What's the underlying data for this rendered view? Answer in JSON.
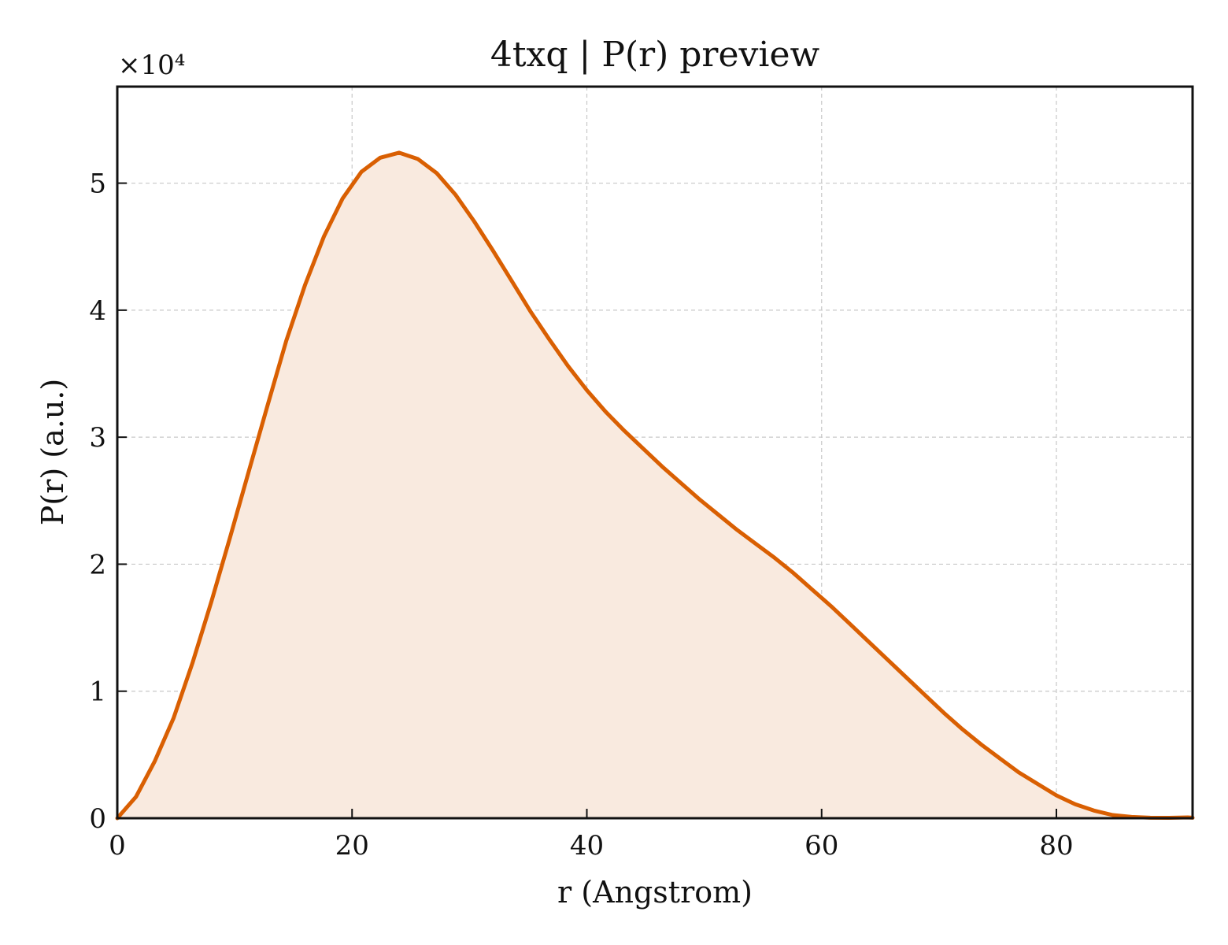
{
  "chart_data": {
    "type": "area",
    "title": "4txq | P(r) preview",
    "xlabel": "r (Angstrom)",
    "ylabel": "P(r) (a.u.)",
    "y_multiplier_label": "×10⁴",
    "xlim": [
      0,
      91.6
    ],
    "ylim": [
      0,
      57600
    ],
    "xticks": [
      0,
      20,
      40,
      60,
      80
    ],
    "xtick_labels": [
      "0",
      "20",
      "40",
      "60",
      "80"
    ],
    "yticks": [
      0,
      10000,
      20000,
      30000,
      40000,
      50000
    ],
    "ytick_labels": [
      "0",
      "1",
      "2",
      "3",
      "4",
      "5"
    ],
    "grid": true,
    "line_color": "#d95f02",
    "fill_color": "#f9eadf",
    "series": [
      {
        "x": [
          0,
          1.6,
          3.2,
          4.8,
          6.4,
          8.0,
          9.6,
          11.2,
          12.8,
          14.4,
          16.0,
          17.6,
          19.2,
          20.8,
          22.4,
          24.0,
          25.6,
          27.2,
          28.8,
          30.4,
          32.0,
          33.6,
          35.2,
          36.8,
          38.4,
          40.0,
          41.6,
          43.2,
          44.8,
          46.4,
          48.0,
          49.6,
          51.2,
          52.8,
          54.4,
          56.0,
          57.6,
          59.2,
          60.8,
          62.4,
          64.0,
          65.6,
          67.2,
          68.8,
          70.4,
          72.0,
          73.6,
          75.2,
          76.8,
          78.4,
          80.0,
          81.6,
          83.2,
          84.8,
          86.4,
          88.0,
          89.6,
          91.2,
          91.6
        ],
        "values": [
          0,
          1700,
          4500,
          7900,
          12200,
          17000,
          22100,
          27300,
          32500,
          37600,
          42000,
          45800,
          48800,
          50900,
          52000,
          52400,
          51900,
          50800,
          49100,
          47000,
          44700,
          42300,
          39900,
          37700,
          35600,
          33700,
          32000,
          30500,
          29100,
          27700,
          26400,
          25100,
          23900,
          22700,
          21600,
          20500,
          19300,
          18000,
          16700,
          15300,
          13900,
          12500,
          11100,
          9700,
          8300,
          7000,
          5800,
          4700,
          3600,
          2700,
          1800,
          1100,
          600,
          250,
          100,
          40,
          30,
          60,
          40
        ]
      }
    ]
  }
}
